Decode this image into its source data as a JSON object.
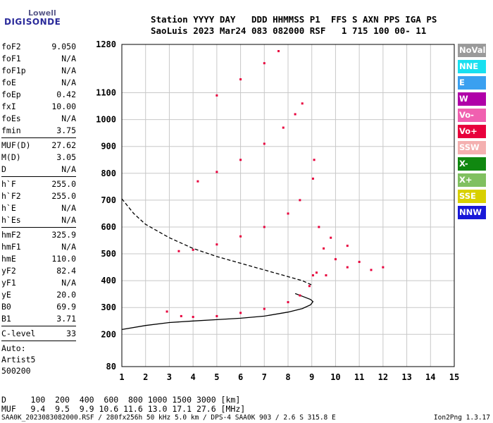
{
  "logo": {
    "line1": "Lowell",
    "line2": "DIGISONDE"
  },
  "header": {
    "line1": "Station YYYY DAY   DDD HHMMSS P1  FFS S AXN PPS IGA PS",
    "line2": "SaoLuis 2023 Mar24 083 082000 RSF   1 715 100 00- 11"
  },
  "params": {
    "group1": [
      {
        "k": "foF2",
        "v": "9.050"
      },
      {
        "k": "foF1",
        "v": "N/A"
      },
      {
        "k": "foF1p",
        "v": "N/A"
      },
      {
        "k": "foE",
        "v": "N/A"
      },
      {
        "k": "foEp",
        "v": "0.42"
      },
      {
        "k": "fxI",
        "v": "10.00"
      },
      {
        "k": "foEs",
        "v": "N/A"
      },
      {
        "k": "fmin",
        "v": "3.75"
      }
    ],
    "group2": [
      {
        "k": "MUF(D)",
        "v": "27.62"
      },
      {
        "k": "M(D)",
        "v": "3.05"
      },
      {
        "k": "D",
        "v": "N/A"
      }
    ],
    "group3": [
      {
        "k": "h`F",
        "v": "255.0"
      },
      {
        "k": "h`F2",
        "v": "255.0"
      },
      {
        "k": "h`E",
        "v": "N/A"
      },
      {
        "k": "h`Es",
        "v": "N/A"
      }
    ],
    "group4": [
      {
        "k": "hmF2",
        "v": "325.9"
      },
      {
        "k": "hmF1",
        "v": "N/A"
      },
      {
        "k": "hmE",
        "v": "110.0"
      },
      {
        "k": "yF2",
        "v": "82.4"
      },
      {
        "k": "yF1",
        "v": "N/A"
      },
      {
        "k": "yE",
        "v": "20.0"
      },
      {
        "k": "B0",
        "v": "69.9"
      },
      {
        "k": "B1",
        "v": "3.71"
      }
    ],
    "clevel": {
      "k": "C-level",
      "v": "33"
    },
    "auto": [
      "Auto:",
      "Artist5",
      "500200"
    ]
  },
  "legend": [
    {
      "label": "NoVal",
      "color": "#9a9a9a"
    },
    {
      "label": "NNE",
      "color": "#18e0f0"
    },
    {
      "label": "E",
      "color": "#3aa0f0"
    },
    {
      "label": "W",
      "color": "#b000a8"
    },
    {
      "label": "Vo-",
      "color": "#f060b0"
    },
    {
      "label": "Vo+",
      "color": "#e8003c"
    },
    {
      "label": "SSW",
      "color": "#f4b0b0"
    },
    {
      "label": "X-",
      "color": "#108810"
    },
    {
      "label": "X+",
      "color": "#80c060"
    },
    {
      "label": "SSE",
      "color": "#d8d000"
    },
    {
      "label": "NNW",
      "color": "#1818d8"
    }
  ],
  "bottom": {
    "dline": "D     100  200  400  600  800 1000 1500 3000 [km]",
    "mufline": "MUF   9.4  9.5  9.9 10.6 11.6 13.0 17.1 27.6 [MHz]"
  },
  "footer": {
    "left": "SAA0K_2023083082000.RSF / 280fx256h 50 kHz 5.0 km / DPS-4 SAA0K 903 / 2.6 S 315.8 E",
    "right": "Ion2Png 1.3.17"
  },
  "chart_data": {
    "type": "scatter",
    "xlabel": "",
    "ylabel": "",
    "xlim": [
      1,
      15
    ],
    "ylim": [
      80,
      1280
    ],
    "x_ticks": [
      1,
      2,
      3,
      4,
      5,
      6,
      7,
      8,
      9,
      10,
      11,
      12,
      13,
      14,
      15
    ],
    "y_ticks": [
      80,
      200,
      300,
      400,
      500,
      600,
      700,
      800,
      900,
      1000,
      1100,
      1280
    ],
    "grid": true,
    "series": [
      {
        "color": "#000000",
        "style": "solid",
        "points": [
          [
            1.0,
            218
          ],
          [
            2,
            233
          ],
          [
            3,
            244
          ],
          [
            4,
            250
          ],
          [
            5,
            255
          ],
          [
            6,
            260
          ],
          [
            7,
            268
          ],
          [
            8,
            283
          ],
          [
            8.6,
            296
          ],
          [
            8.95,
            310
          ],
          [
            9.05,
            322
          ],
          [
            8.95,
            330
          ],
          [
            8.6,
            342
          ],
          [
            8.3,
            352
          ]
        ]
      },
      {
        "color": "#000000",
        "style": "dashed",
        "points": [
          [
            1.0,
            705
          ],
          [
            1.5,
            650
          ],
          [
            2,
            610
          ],
          [
            3,
            560
          ],
          [
            4,
            520
          ],
          [
            5,
            490
          ],
          [
            6,
            465
          ],
          [
            7,
            440
          ],
          [
            8,
            415
          ],
          [
            8.6,
            400
          ],
          [
            9.05,
            382
          ]
        ]
      },
      {
        "color": "#e8003c",
        "points": [
          [
            2.9,
            285
          ],
          [
            3.5,
            268
          ],
          [
            4,
            265
          ],
          [
            5,
            268
          ],
          [
            6,
            280
          ],
          [
            7,
            295
          ],
          [
            8,
            320
          ],
          [
            8.5,
            345
          ],
          [
            8.9,
            380
          ],
          [
            9.05,
            420
          ]
        ]
      },
      {
        "color": "#e8003c",
        "points": [
          [
            3.4,
            510
          ],
          [
            4,
            515
          ],
          [
            5,
            535
          ],
          [
            6,
            565
          ],
          [
            7,
            600
          ],
          [
            8,
            650
          ],
          [
            8.5,
            700
          ],
          [
            9.05,
            780
          ],
          [
            9.1,
            850
          ]
        ]
      },
      {
        "color": "#e8003c",
        "points": [
          [
            4.2,
            770
          ],
          [
            5,
            805
          ],
          [
            6,
            850
          ],
          [
            7,
            910
          ],
          [
            7.8,
            970
          ],
          [
            8.3,
            1020
          ],
          [
            8.6,
            1060
          ]
        ]
      },
      {
        "color": "#e8003c",
        "points": [
          [
            5,
            1090
          ],
          [
            6,
            1150
          ],
          [
            7,
            1210
          ],
          [
            7.6,
            1255
          ]
        ]
      },
      {
        "color": "#e8003c",
        "points": [
          [
            9.2,
            430
          ],
          [
            9.5,
            520
          ],
          [
            10,
            480
          ],
          [
            10.5,
            450
          ],
          [
            11,
            470
          ],
          [
            11.5,
            440
          ],
          [
            12,
            450
          ],
          [
            9.3,
            600
          ],
          [
            9.8,
            560
          ],
          [
            10.5,
            530
          ],
          [
            9.6,
            420
          ]
        ]
      }
    ]
  }
}
